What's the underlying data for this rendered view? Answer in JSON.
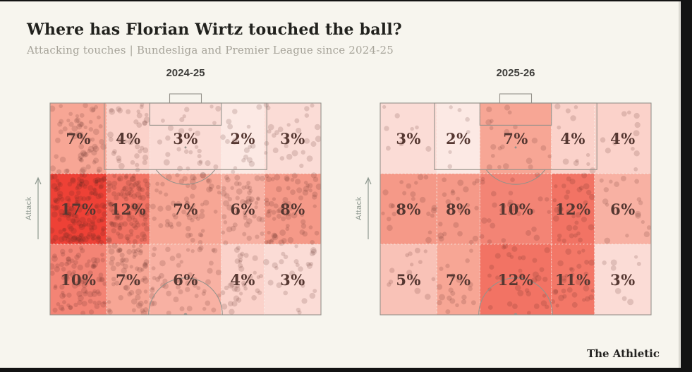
{
  "title": "Where has Florian Wirtz touched the ball?",
  "subtitle": "Attacking touches | Bundesliga and Premier League since 2024-25",
  "credit": "The Athletic",
  "attack_label": "Attack",
  "colors": {
    "background": "#f7f5ee",
    "title": "#21211d",
    "subtitle": "#a7a49a",
    "season_label": "#3d3c39",
    "zone_label": "#553731",
    "pitch_line": "#95928b",
    "grid_dots": "rgba(247,245,238,0.85)",
    "touch_dot": "rgba(84,36,30,0.16)",
    "frame_bar": "#131313",
    "frame_edge_line": "#dcdad2",
    "attack": "#8e988f"
  },
  "chart_data": [
    {
      "type": "heatmap",
      "title": "2024-25",
      "x_zones": [
        "left wing",
        "left half-space",
        "central",
        "right half-space",
        "right wing"
      ],
      "y_zones": [
        "zone nearest goal",
        "middle zone of attacking half",
        "zone nearest halfway line"
      ],
      "values": [
        [
          7,
          4,
          3,
          2,
          3
        ],
        [
          17,
          12,
          7,
          6,
          8
        ],
        [
          10,
          7,
          6,
          4,
          3
        ]
      ],
      "labels": [
        [
          "7%",
          "4%",
          "3%",
          "2%",
          "3%"
        ],
        [
          "17%",
          "12%",
          "7%",
          "6%",
          "8%"
        ],
        [
          "10%",
          "7%",
          "6%",
          "4%",
          "3%"
        ]
      ],
      "cell_colors": [
        [
          "#f7a695",
          "#fbd2ca",
          "#fbdcd6",
          "#fce9e4",
          "#fbdcd6"
        ],
        [
          "#ee4136",
          "#f27364",
          "#f7a695",
          "#f8b1a3",
          "#f59988"
        ],
        [
          "#f38475",
          "#f7a695",
          "#f8b1a3",
          "#fbd2ca",
          "#fbdcd6"
        ]
      ],
      "col_bounds": [
        0,
        0.209,
        0.368,
        0.632,
        0.791,
        1
      ],
      "row_bounds": [
        0,
        0.3333,
        0.6667,
        1
      ],
      "dot_factor": 9,
      "seed": 7
    },
    {
      "type": "heatmap",
      "title": "2025-26",
      "x_zones": [
        "left wing",
        "left half-space",
        "central",
        "right half-space",
        "right wing"
      ],
      "y_zones": [
        "zone nearest goal",
        "middle zone of attacking half",
        "zone nearest halfway line"
      ],
      "values": [
        [
          3,
          2,
          7,
          4,
          4
        ],
        [
          8,
          8,
          10,
          12,
          6
        ],
        [
          5,
          7,
          12,
          11,
          3
        ]
      ],
      "labels": [
        [
          "3%",
          "2%",
          "7%",
          "4%",
          "4%"
        ],
        [
          "8%",
          "8%",
          "10%",
          "12%",
          "6%"
        ],
        [
          "5%",
          "7%",
          "12%",
          "11%",
          "3%"
        ]
      ],
      "cell_colors": [
        [
          "#fbdcd6",
          "#fce9e4",
          "#f7a695",
          "#fbd2ca",
          "#fbd2ca"
        ],
        [
          "#f59988",
          "#f59988",
          "#f38475",
          "#f27364",
          "#f8b1a3"
        ],
        [
          "#f9c2b7",
          "#f7a695",
          "#f27364",
          "#f37767",
          "#fbdcd6"
        ]
      ],
      "col_bounds": [
        0,
        0.209,
        0.368,
        0.632,
        0.791,
        1
      ],
      "row_bounds": [
        0,
        0.3333,
        0.6667,
        1
      ],
      "dot_factor": 2.8,
      "seed": 13
    }
  ]
}
